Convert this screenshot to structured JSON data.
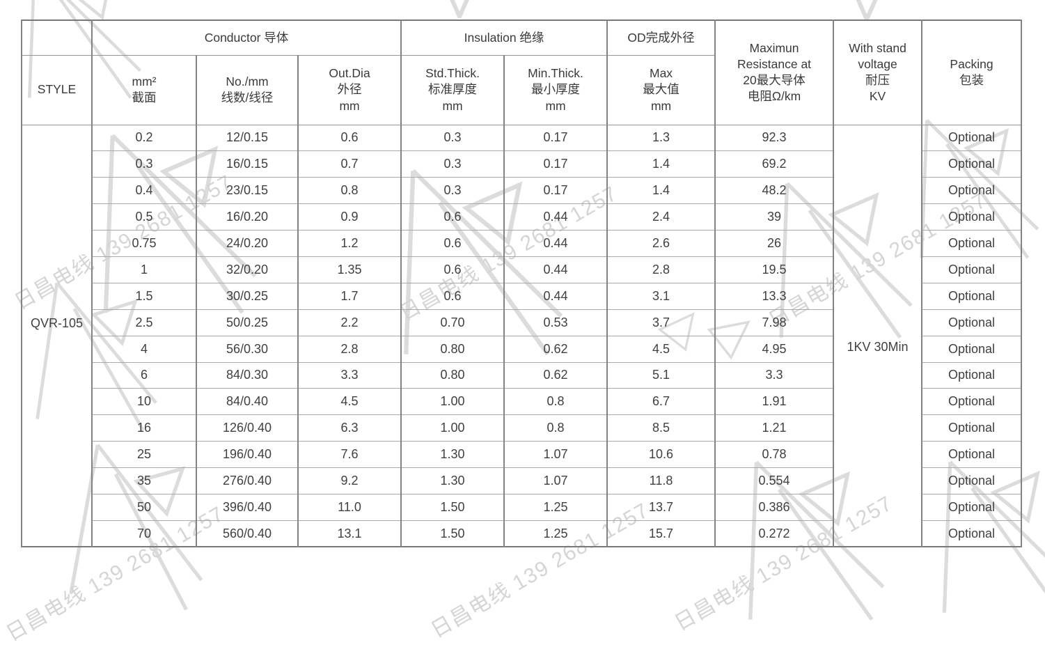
{
  "watermark": {
    "text": "日昌电线 139 2681 1257"
  },
  "table": {
    "header": {
      "style": "STYLE",
      "conductor_group": "Conductor 导体",
      "insulation_group": "Insulation 绝缘",
      "od_group": "OD完成外径",
      "cols": {
        "mm2": "mm²\n截面",
        "no_mm": "No./mm\n线数/线径",
        "out_dia": "Out.Dia\n外径\nmm",
        "std_thick": "Std.Thick.\n标准厚度\nmm",
        "min_thick": "Min.Thick.\n最小厚度\nmm",
        "max": "Max\n最大值\nmm",
        "resistance": "Maximun\nResistance at\n20最大导体\n电阻Ω/km",
        "withstand": "With stand\nvoltage\n耐压\nKV",
        "packing": "Packing\n包装"
      }
    },
    "style_value": "QVR-105",
    "withstand_value": "1KV 30Min",
    "rows": [
      [
        "0.2",
        "12/0.15",
        "0.6",
        "0.3",
        "0.17",
        "1.3",
        "92.3",
        "Optional"
      ],
      [
        "0.3",
        "16/0.15",
        "0.7",
        "0.3",
        "0.17",
        "1.4",
        "69.2",
        "Optional"
      ],
      [
        "0.4",
        "23/0.15",
        "0.8",
        "0.3",
        "0.17",
        "1.4",
        "48.2",
        "Optional"
      ],
      [
        "0.5",
        "16/0.20",
        "0.9",
        "0.6",
        "0.44",
        "2.4",
        "39",
        "Optional"
      ],
      [
        "0.75",
        "24/0.20",
        "1.2",
        "0.6",
        "0.44",
        "2.6",
        "26",
        "Optional"
      ],
      [
        "1",
        "32/0.20",
        "1.35",
        "0.6",
        "0.44",
        "2.8",
        "19.5",
        "Optional"
      ],
      [
        "1.5",
        "30/0.25",
        "1.7",
        "0.6",
        "0.44",
        "3.1",
        "13.3",
        "Optional"
      ],
      [
        "2.5",
        "50/0.25",
        "2.2",
        "0.70",
        "0.53",
        "3.7",
        "7.98",
        "Optional"
      ],
      [
        "4",
        "56/0.30",
        "2.8",
        "0.80",
        "0.62",
        "4.5",
        "4.95",
        "Optional"
      ],
      [
        "6",
        "84/0.30",
        "3.3",
        "0.80",
        "0.62",
        "5.1",
        "3.3",
        "Optional"
      ],
      [
        "10",
        "84/0.40",
        "4.5",
        "1.00",
        "0.8",
        "6.7",
        "1.91",
        "Optional"
      ],
      [
        "16",
        "126/0.40",
        "6.3",
        "1.00",
        "0.8",
        "8.5",
        "1.21",
        "Optional"
      ],
      [
        "25",
        "196/0.40",
        "7.6",
        "1.30",
        "1.07",
        "10.6",
        "0.78",
        "Optional"
      ],
      [
        "35",
        "276/0.40",
        "9.2",
        "1.30",
        "1.07",
        "11.8",
        "0.554",
        "Optional"
      ],
      [
        "50",
        "396/0.40",
        "11.0",
        "1.50",
        "1.25",
        "13.7",
        "0.386",
        "Optional"
      ],
      [
        "70",
        "560/0.40",
        "13.1",
        "1.50",
        "1.25",
        "15.7",
        "0.272",
        "Optional"
      ]
    ]
  }
}
